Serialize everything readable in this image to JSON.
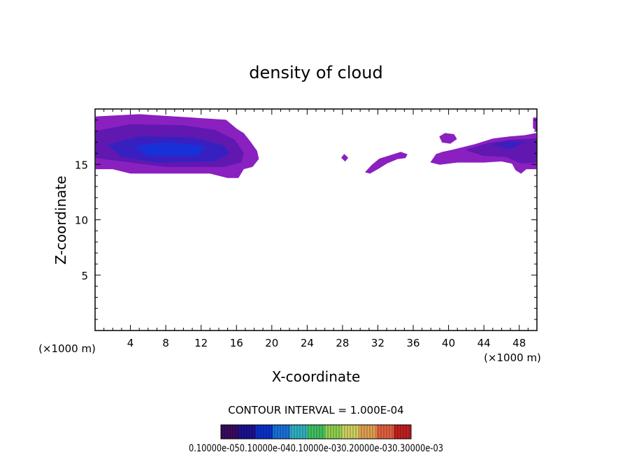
{
  "chart_data": {
    "type": "heatmap",
    "title": "density of cloud",
    "xlabel": "X-coordinate",
    "ylabel": "Z-coordinate",
    "x_unit_left": "(×1000 m)",
    "x_unit_right": "(×1000 m)",
    "xlim": [
      0,
      50
    ],
    "ylim": [
      0,
      20
    ],
    "x_ticks": [
      4,
      8,
      12,
      16,
      20,
      24,
      28,
      32,
      36,
      40,
      44,
      48
    ],
    "y_ticks": [
      5,
      10,
      15
    ],
    "x_minor_step": 1,
    "y_minor_step": 1,
    "contour_interval_text": "CONTOUR INTERVAL = 1.000E-04",
    "colorbar_labels_text": "0.10000e-050.10000e-040.10000e-030.20000e-030.30000e-03",
    "colorbar_colors": [
      "#3a0a5e",
      "#1c1090",
      "#0a30c8",
      "#1a70d8",
      "#30b0c0",
      "#40c060",
      "#90d050",
      "#d0d060",
      "#e0a050",
      "#e06040",
      "#c02020"
    ],
    "cloud_fill_colors": [
      "#8a20c0",
      "#6018b0",
      "#3820c0",
      "#1830d8"
    ],
    "cloud_regions": [
      {
        "name": "west-cloud",
        "outer": [
          [
            0.1,
            19.3
          ],
          [
            5.0,
            19.5
          ],
          [
            14.8,
            19.0
          ],
          [
            16.0,
            18.2
          ],
          [
            16.8,
            17.8
          ],
          [
            17.5,
            17.1
          ],
          [
            18.3,
            16.2
          ],
          [
            18.5,
            15.5
          ],
          [
            17.8,
            14.8
          ],
          [
            16.8,
            14.6
          ],
          [
            16.2,
            13.8
          ],
          [
            15.0,
            13.8
          ],
          [
            13.0,
            14.2
          ],
          [
            4.0,
            14.2
          ],
          [
            2.0,
            14.6
          ],
          [
            0.1,
            14.6
          ]
        ],
        "mid": [
          [
            0.1,
            18.0
          ],
          [
            4.0,
            18.6
          ],
          [
            10.0,
            18.5
          ],
          [
            13.5,
            18.1
          ],
          [
            15.8,
            17.2
          ],
          [
            16.8,
            16.0
          ],
          [
            16.5,
            15.2
          ],
          [
            14.5,
            14.8
          ],
          [
            8.0,
            14.8
          ],
          [
            3.0,
            15.3
          ],
          [
            0.1,
            15.6
          ]
        ],
        "inner": [
          [
            1.5,
            16.8
          ],
          [
            5.0,
            17.5
          ],
          [
            11.0,
            17.4
          ],
          [
            14.5,
            16.7
          ],
          [
            15.2,
            16.0
          ],
          [
            13.5,
            15.3
          ],
          [
            7.0,
            15.2
          ],
          [
            3.0,
            15.7
          ]
        ],
        "core": [
          [
            4.5,
            16.6
          ],
          [
            8.0,
            17.0
          ],
          [
            12.5,
            16.6
          ],
          [
            11.5,
            15.8
          ],
          [
            6.0,
            15.8
          ]
        ]
      },
      {
        "name": "dot-cloud",
        "outer": [
          [
            27.9,
            15.6
          ],
          [
            28.2,
            15.9
          ],
          [
            28.6,
            15.6
          ],
          [
            28.3,
            15.3
          ]
        ]
      },
      {
        "name": "mid-streak-cloud",
        "outer": [
          [
            30.6,
            14.3
          ],
          [
            31.3,
            14.9
          ],
          [
            32.2,
            15.5
          ],
          [
            33.4,
            15.8
          ],
          [
            34.6,
            16.1
          ],
          [
            35.3,
            15.9
          ],
          [
            35.1,
            15.6
          ],
          [
            34.2,
            15.5
          ],
          [
            33.0,
            15.1
          ],
          [
            32.0,
            14.6
          ],
          [
            31.1,
            14.2
          ]
        ]
      },
      {
        "name": "east-cloud",
        "outer": [
          [
            38.0,
            15.2
          ],
          [
            38.6,
            15.9
          ],
          [
            39.3,
            16.1
          ],
          [
            40.5,
            16.3
          ],
          [
            43.0,
            16.8
          ],
          [
            45.0,
            17.3
          ],
          [
            47.0,
            17.5
          ],
          [
            48.6,
            17.6
          ],
          [
            49.9,
            17.8
          ],
          [
            49.9,
            14.6
          ],
          [
            48.8,
            14.6
          ],
          [
            48.2,
            14.2
          ],
          [
            47.6,
            14.5
          ],
          [
            47.2,
            15.1
          ],
          [
            46.0,
            15.3
          ],
          [
            44.0,
            15.2
          ],
          [
            41.0,
            15.2
          ],
          [
            39.0,
            15.0
          ]
        ],
        "mid": [
          [
            42.0,
            16.3
          ],
          [
            44.5,
            16.9
          ],
          [
            47.0,
            17.2
          ],
          [
            49.9,
            17.3
          ],
          [
            49.9,
            15.2
          ],
          [
            48.2,
            15.1
          ],
          [
            46.5,
            15.7
          ],
          [
            44.0,
            15.8
          ]
        ],
        "inner": [
          [
            45.0,
            16.8
          ],
          [
            46.8,
            17.1
          ],
          [
            48.5,
            17.0
          ],
          [
            47.0,
            16.4
          ]
        ]
      },
      {
        "name": "east-small-cloud",
        "outer": [
          [
            39.0,
            17.5
          ],
          [
            39.6,
            17.8
          ],
          [
            40.6,
            17.7
          ],
          [
            40.9,
            17.3
          ],
          [
            40.2,
            16.9
          ],
          [
            39.3,
            17.0
          ]
        ]
      },
      {
        "name": "east-top-edge",
        "outer": [
          [
            49.6,
            19.2
          ],
          [
            49.95,
            19.2
          ],
          [
            49.95,
            18.0
          ],
          [
            49.6,
            18.3
          ]
        ]
      }
    ]
  }
}
